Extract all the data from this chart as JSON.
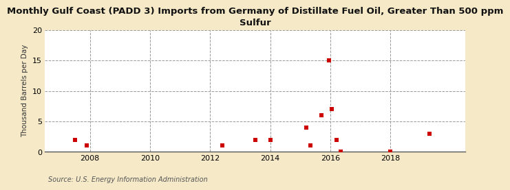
{
  "title": "Monthly Gulf Coast (PADD 3) Imports from Germany of Distillate Fuel Oil, Greater Than 500 ppm\nSulfur",
  "ylabel": "Thousand Barrels per Day",
  "source": "Source: U.S. Energy Information Administration",
  "background_color": "#f5e9c8",
  "plot_background_color": "#ffffff",
  "marker_color": "#cc0000",
  "marker_size": 4,
  "xlim": [
    2006.5,
    2020.5
  ],
  "ylim": [
    0,
    20
  ],
  "yticks": [
    0,
    5,
    10,
    15,
    20
  ],
  "xticks": [
    2008,
    2010,
    2012,
    2014,
    2016,
    2018
  ],
  "data_x": [
    2007.5,
    2007.9,
    2012.4,
    2013.5,
    2014.0,
    2015.2,
    2015.35,
    2015.7,
    2015.95,
    2016.05,
    2016.2,
    2016.35,
    2018.0,
    2019.3
  ],
  "data_y": [
    2.0,
    1.0,
    1.0,
    2.0,
    2.0,
    4.0,
    1.0,
    6.0,
    15.0,
    7.0,
    2.0,
    0.0,
    0.0,
    3.0
  ]
}
